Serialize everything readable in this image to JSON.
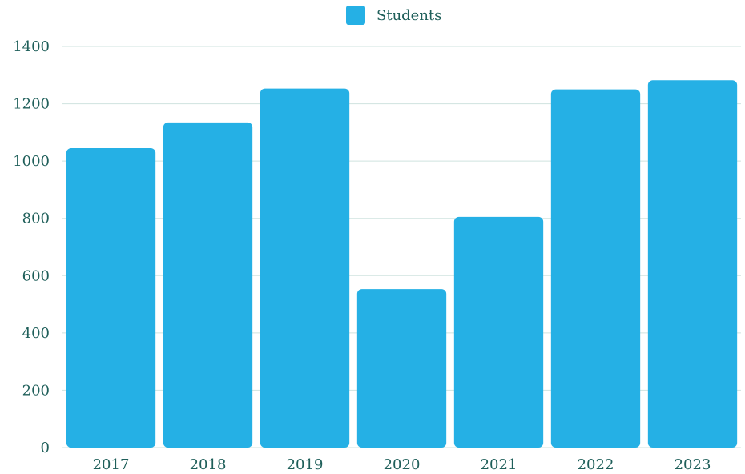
{
  "chart_data": {
    "type": "bar",
    "categories": [
      "2017",
      "2018",
      "2019",
      "2020",
      "2021",
      "2022",
      "2023"
    ],
    "series": [
      {
        "name": "Students",
        "values": [
          1045,
          1135,
          1253,
          553,
          805,
          1250,
          1282
        ]
      }
    ],
    "title": "",
    "xlabel": "",
    "ylabel": "",
    "ylim": [
      0,
      1400
    ],
    "yticks": [
      0,
      200,
      400,
      600,
      800,
      1000,
      1200,
      1400
    ],
    "grid": true,
    "legend_position": "top-center",
    "colors": {
      "bar": "#25b0e5",
      "grid": "#cfe3df",
      "text": "#1f5f5a",
      "axis": "#2b7c74"
    }
  }
}
